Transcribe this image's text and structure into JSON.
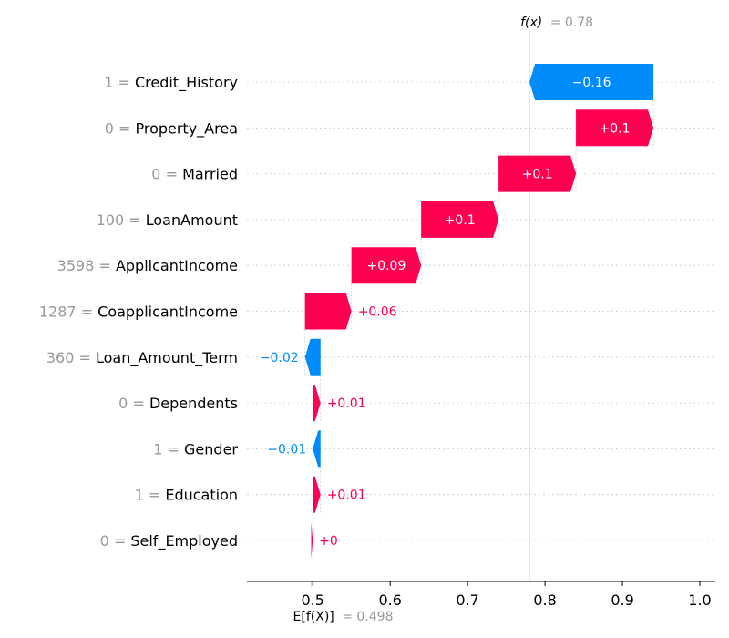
{
  "chart_data": {
    "type": "waterfall",
    "f_x": {
      "label": "f(x)",
      "value_text": "= 0.78",
      "value": 0.78
    },
    "base": {
      "label": "E[f(X)]",
      "value_text": "= 0.498",
      "value": 0.498
    },
    "features": [
      {
        "value": "1",
        "name": "Credit_History",
        "contribution": -0.16,
        "label": "−0.16"
      },
      {
        "value": "0",
        "name": "Property_Area",
        "contribution": 0.1,
        "label": "+0.1"
      },
      {
        "value": "0",
        "name": "Married",
        "contribution": 0.1,
        "label": "+0.1"
      },
      {
        "value": "100",
        "name": "LoanAmount",
        "contribution": 0.1,
        "label": "+0.1"
      },
      {
        "value": "3598",
        "name": "ApplicantIncome",
        "contribution": 0.09,
        "label": "+0.09"
      },
      {
        "value": "1287",
        "name": "CoapplicantIncome",
        "contribution": 0.06,
        "label": "+0.06"
      },
      {
        "value": "360",
        "name": "Loan_Amount_Term",
        "contribution": -0.02,
        "label": "−0.02"
      },
      {
        "value": "0",
        "name": "Dependents",
        "contribution": 0.01,
        "label": "+0.01"
      },
      {
        "value": "1",
        "name": "Gender",
        "contribution": -0.01,
        "label": "−0.01"
      },
      {
        "value": "1",
        "name": "Education",
        "contribution": 0.01,
        "label": "+0.01"
      },
      {
        "value": "0",
        "name": "Self_Employed",
        "contribution": 0.002,
        "label": "+0"
      }
    ],
    "x_ticks": [
      0.5,
      0.6,
      0.7,
      0.8,
      0.9,
      1.0
    ],
    "x_tick_labels": [
      "0.5",
      "0.6",
      "0.7",
      "0.8",
      "0.9",
      "1.0"
    ],
    "xlim": [
      0.415,
      1.02
    ],
    "colors": {
      "positive": "#ff0051",
      "negative": "#008bfb",
      "muted": "#999999",
      "axis": "#000000",
      "grid": "#cccccc"
    }
  }
}
